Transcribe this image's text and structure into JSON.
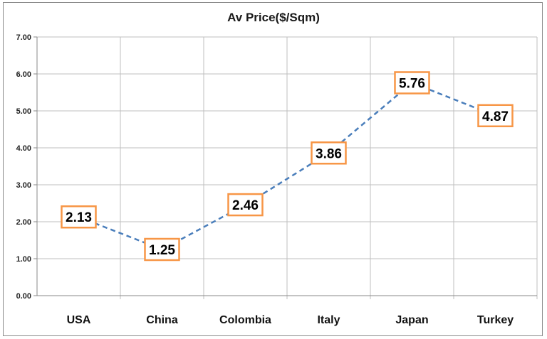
{
  "chart_data": {
    "type": "line",
    "title": "Av Price($/Sqm)",
    "xlabel": "",
    "ylabel": "",
    "categories": [
      "USA",
      "China",
      "Colombia",
      "Italy",
      "Japan",
      "Turkey"
    ],
    "series": [
      {
        "values": [
          2.13,
          1.25,
          2.46,
          3.86,
          5.76,
          4.87
        ]
      }
    ],
    "data_labels": [
      "2.13",
      "1.25",
      "2.46",
      "3.86",
      "5.76",
      "4.87"
    ],
    "ylim": [
      0,
      7
    ],
    "yticks": [
      "0.00",
      "1.00",
      "2.00",
      "3.00",
      "4.00",
      "5.00",
      "6.00",
      "7.00"
    ],
    "grid": true,
    "legend": "none",
    "colors": {
      "line": "#4a7ebb",
      "label_border": "#f79646",
      "grid": "#bfbfbf",
      "frame": "#8a8a8a"
    }
  }
}
